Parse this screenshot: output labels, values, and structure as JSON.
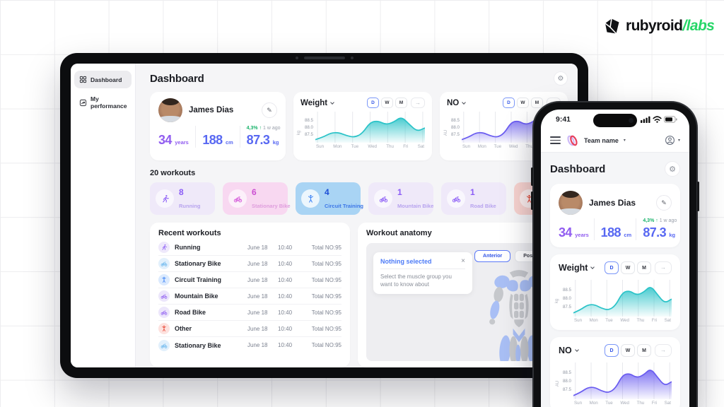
{
  "brand": {
    "left": "rubyroid",
    "right": "labs"
  },
  "colors": {
    "brand_green": "#27d668",
    "teal": "#2bc3c8",
    "purple_chart": "#6a5cf0",
    "accent_blue": "#5868f2",
    "accent_purple": "#915df0",
    "green_up": "#17b26a",
    "badge_pink": "#cb4fd2",
    "badge_blue": "#1c4ed6",
    "badge_red": "#e2402e"
  },
  "ui": {
    "toggles": [
      "D",
      "W",
      "M"
    ],
    "arrow": "→"
  },
  "profile": {
    "name": "James Dias",
    "age": "34",
    "age_unit": "years",
    "height": "188",
    "height_unit": "cm",
    "weight": "87.3",
    "weight_unit": "kg",
    "delta": "4,3%",
    "delta_arrow": "↑",
    "delta_when": "1 w ago"
  },
  "chart_data": [
    {
      "type": "area",
      "title": "Weight",
      "unit": "kg",
      "legend": "none",
      "grid": true,
      "x": [
        "Sun",
        "Mon",
        "Tue",
        "Wed",
        "Thu",
        "Fri",
        "Sat"
      ],
      "values": [
        87.12,
        87.3,
        87.6,
        87.62,
        87.4,
        87.28,
        87.55,
        88.35,
        88.45,
        88.18,
        88.35,
        88.75,
        88.2,
        87.7,
        87.95
      ],
      "yticks": [
        "88.5",
        "88.0",
        "87.5"
      ],
      "ylim": [
        86.9,
        89.1
      ],
      "color": "#2bc3c8"
    },
    {
      "type": "area",
      "title": "NO",
      "unit": "AU",
      "legend": "none",
      "grid": true,
      "x": [
        "Sun",
        "Mon",
        "Tue",
        "Wed",
        "Thu",
        "Fri",
        "Sat"
      ],
      "values": [
        87.12,
        87.3,
        87.6,
        87.62,
        87.4,
        87.28,
        87.55,
        88.35,
        88.45,
        88.18,
        88.35,
        88.75,
        88.2,
        87.7,
        87.95
      ],
      "yticks": [
        "88.5",
        "88.0",
        "87.5"
      ],
      "ylim": [
        86.9,
        89.1
      ],
      "color": "#6a5cf0"
    }
  ],
  "tablet": {
    "sidebar": {
      "items": [
        {
          "label": "Dashboard"
        },
        {
          "label": "My performance"
        }
      ]
    },
    "title": "Dashboard",
    "workouts": {
      "heading": "20 workouts",
      "badges": [
        {
          "count": "8",
          "label": "Running"
        },
        {
          "count": "6",
          "label": "Stationary Bike"
        },
        {
          "count": "4",
          "label": "Circuit Training"
        },
        {
          "count": "1",
          "label": "Mountain Bike"
        },
        {
          "count": "1",
          "label": "Road Bike"
        },
        {
          "count": "",
          "label": ""
        }
      ]
    },
    "recent": {
      "title": "Recent workouts",
      "rows": [
        {
          "name": "Running",
          "date": "June 18",
          "time": "10:40",
          "total": "Total NO:95"
        },
        {
          "name": "Stationary Bike",
          "date": "June 18",
          "time": "10:40",
          "total": "Total NO:95"
        },
        {
          "name": "Circuit Training",
          "date": "June 18",
          "time": "10:40",
          "total": "Total NO:95"
        },
        {
          "name": "Mountain Bike",
          "date": "June 18",
          "time": "10:40",
          "total": "Total NO:95"
        },
        {
          "name": "Road Bike",
          "date": "June 18",
          "time": "10:40",
          "total": "Total NO:95"
        },
        {
          "name": "Other",
          "date": "June 18",
          "time": "10:40",
          "total": "Total NO:95"
        },
        {
          "name": "Stationary Bike",
          "date": "June 18",
          "time": "10:40",
          "total": "Total NO:95"
        }
      ]
    },
    "anatomy": {
      "title": "Workout anatomy",
      "tooltip_title": "Nothing selected",
      "tooltip_close": "×",
      "tooltip_body": "Select the muscle group you want to know about",
      "tabs": [
        {
          "label": "Anterior"
        },
        {
          "label": "Posterior"
        }
      ]
    }
  },
  "phone": {
    "time": "9:41",
    "team": "Team name",
    "caret": "▾",
    "title": "Dashboard"
  }
}
